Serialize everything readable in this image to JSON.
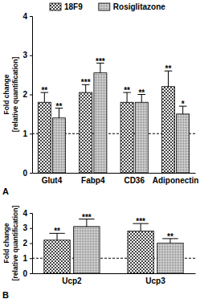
{
  "chart_data": [
    {
      "type": "bar",
      "title": "A",
      "y_label": [
        "Fold change",
        "[relative quantification]"
      ],
      "categories": [
        "Glut4",
        "Fabp4",
        "CD36",
        "Adiponectin"
      ],
      "series": [
        {
          "name": "18F9",
          "color": "#444444",
          "values": [
            1.8,
            2.05,
            1.8,
            2.2
          ],
          "errors": [
            0.25,
            0.2,
            0.25,
            0.4
          ],
          "significance": [
            "**",
            "***",
            "**",
            "**"
          ]
        },
        {
          "name": "Rosiglitazone",
          "color": "#666666",
          "values": [
            1.4,
            2.55,
            1.8,
            1.5
          ],
          "errors": [
            0.25,
            0.25,
            0.2,
            0.2
          ],
          "significance": [
            "**",
            "***",
            "**",
            "*"
          ]
        }
      ],
      "ylim": [
        0,
        4
      ],
      "yticks": [
        0,
        1,
        2,
        3,
        4
      ],
      "baseline": 1,
      "legend": "top"
    },
    {
      "type": "bar",
      "title": "B",
      "y_label": [
        "Fold change",
        "[relative quantification]"
      ],
      "categories": [
        "Ucp2",
        "Ucp3"
      ],
      "series": [
        {
          "name": "18F9",
          "color": "#444444",
          "values": [
            2.2,
            2.8
          ],
          "errors": [
            0.45,
            0.5
          ],
          "significance": [
            "**",
            "***"
          ]
        },
        {
          "name": "Rosiglitazone",
          "color": "#666666",
          "values": [
            3.1,
            2.0
          ],
          "errors": [
            0.5,
            0.3
          ],
          "significance": [
            "***",
            "**"
          ]
        }
      ],
      "ylim": [
        0,
        4
      ],
      "yticks": [
        0,
        1,
        2,
        3,
        4
      ],
      "baseline": 1
    }
  ]
}
